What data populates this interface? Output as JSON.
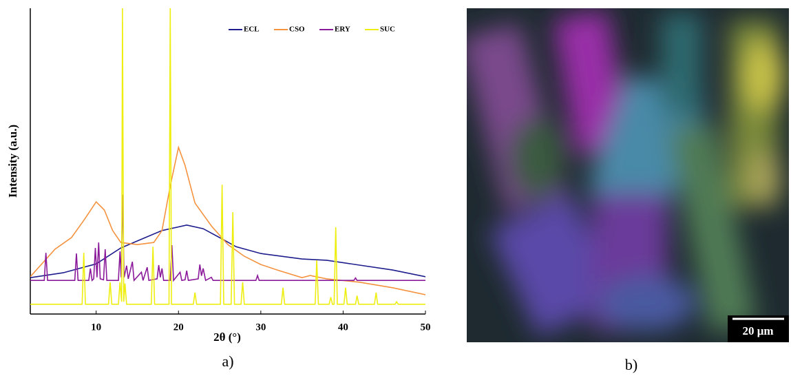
{
  "chart_data": {
    "type": "line",
    "xlabel": "2θ (°)",
    "ylabel": "Intensity (a.u.)",
    "xlim": [
      2,
      50
    ],
    "xticks": [
      10,
      20,
      30,
      40,
      50
    ],
    "ylim": [
      0,
      100
    ],
    "legend": "upper right",
    "series": [
      {
        "name": "ECL",
        "color": "#1c1c8c",
        "x": [
          2,
          6,
          10,
          13,
          15,
          18,
          21,
          23,
          25,
          27,
          30,
          35,
          38,
          42,
          46,
          50
        ],
        "values": [
          11.9,
          13.5,
          16.4,
          21.6,
          23.9,
          27.3,
          29.1,
          27.9,
          25,
          22,
          19.8,
          18,
          17.6,
          16,
          14.4,
          12.2
        ]
      },
      {
        "name": "CSO",
        "color": "#f5923e",
        "x": [
          2,
          5,
          7,
          8.5,
          10,
          11,
          12,
          13,
          15,
          17,
          18,
          19,
          20,
          20.8,
          22,
          24,
          26,
          28,
          30,
          32,
          35,
          36,
          38,
          42,
          46,
          50
        ],
        "values": [
          12.2,
          21.2,
          25,
          30.6,
          36.7,
          34,
          27.3,
          23.4,
          22.7,
          23.4,
          27.3,
          41.9,
          54.5,
          48.6,
          36.3,
          28.8,
          22.7,
          18.9,
          16.2,
          14.4,
          11.9,
          12.6,
          11.5,
          10.4,
          8.6,
          6.3
        ]
      },
      {
        "name": "ERY",
        "color": "#8b1a9b",
        "x": [
          2,
          3.7,
          3.9,
          4.1,
          7.4,
          7.6,
          7.8,
          9.1,
          9.3,
          9.5,
          9.7,
          9.9,
          10.1,
          10.3,
          10.5,
          10.9,
          11.1,
          11.3,
          12.7,
          12.9,
          13.05,
          13.2,
          13.4,
          13.7,
          13.9,
          14.4,
          14.6,
          15.5,
          15.7,
          16.2,
          16.4,
          17.4,
          17.6,
          17.8,
          18,
          18.2,
          19,
          19.2,
          19.4,
          20.2,
          20.4,
          20.8,
          21,
          21.2,
          22.4,
          22.6,
          22.8,
          23,
          23.3,
          24,
          24.2,
          29.4,
          29.6,
          29.8,
          41.3,
          41.5,
          41.7,
          50
        ],
        "values": [
          11,
          11,
          20,
          11,
          11,
          19.8,
          11,
          11,
          14.9,
          11,
          11.5,
          21.6,
          12,
          23.4,
          11.5,
          11.2,
          21.2,
          11,
          11,
          20.5,
          12,
          39,
          12,
          15.8,
          11.5,
          17.1,
          11,
          13.7,
          11,
          15.3,
          11,
          11.5,
          16,
          12,
          14.9,
          11,
          11,
          22.5,
          11,
          13.7,
          11,
          11.2,
          14.2,
          11,
          11.5,
          16.2,
          12.5,
          14.9,
          11,
          12,
          11,
          11,
          12.6,
          11,
          11,
          11.8,
          11,
          11
        ]
      },
      {
        "name": "SUC",
        "color": "#eeee10",
        "x": [
          2,
          8.3,
          8.5,
          8.7,
          11.5,
          11.7,
          11.9,
          12.7,
          12.9,
          13.1,
          13.2,
          13.35,
          13.5,
          13.7,
          16.7,
          16.9,
          17.1,
          18.85,
          19,
          19.15,
          21.8,
          22,
          22.2,
          25.1,
          25.3,
          25.5,
          26.4,
          26.6,
          26.8,
          27.6,
          27.8,
          28,
          32.5,
          32.7,
          32.9,
          36.6,
          36.8,
          37,
          38.3,
          38.5,
          38.7,
          38.9,
          39.1,
          39.3,
          40.1,
          40.3,
          40.5,
          41.5,
          41.7,
          41.9,
          43.8,
          44,
          44.2,
          46.3,
          46.5,
          46.7,
          50
        ],
        "values": [
          3.2,
          3.2,
          20,
          3.2,
          3.2,
          10.4,
          3.2,
          3.2,
          10.4,
          4,
          100,
          4,
          10,
          3.2,
          3.2,
          22,
          3.2,
          3.2,
          100,
          3.2,
          3.2,
          7,
          3.2,
          3.2,
          42.3,
          3.2,
          3.2,
          33.3,
          3.2,
          3.2,
          10.4,
          3.2,
          3.2,
          8.6,
          3.2,
          3.2,
          17.6,
          3.2,
          3.2,
          5.5,
          3.2,
          3.2,
          28.4,
          3.2,
          3.2,
          8.6,
          3.2,
          3.2,
          6,
          3.2,
          3.2,
          7,
          3.2,
          3.2,
          4,
          3.2,
          3.2
        ]
      }
    ]
  },
  "captions": [
    "a)",
    "b)"
  ],
  "scale_bar": "20 μm"
}
